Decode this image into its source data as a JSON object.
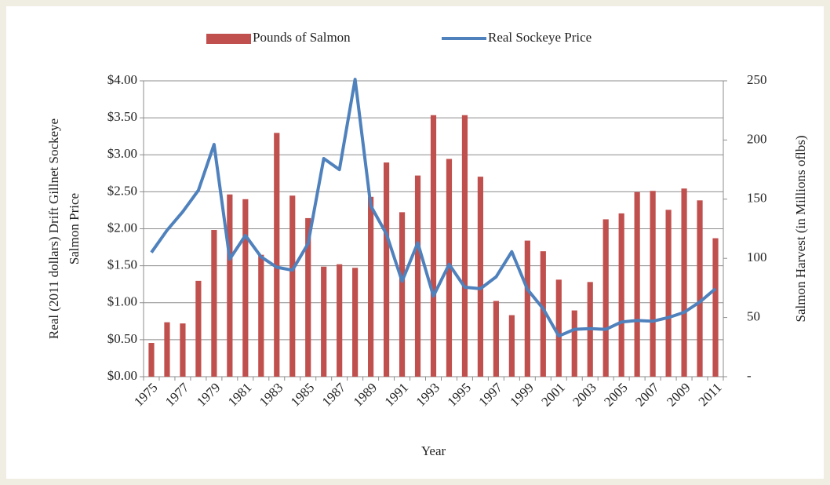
{
  "chart_data": {
    "type": "bar_line",
    "xlabel": "Year",
    "ylabel": [
      "Real (2011 dollars) Drift Gillnet Sockeye",
      "Salmon Price"
    ],
    "y2label": "Salmon Harvest (in Millions oflbs)",
    "categories": [
      "1975",
      null,
      "1977",
      null,
      "1979",
      null,
      "1981",
      null,
      "1983",
      null,
      "1985",
      null,
      "1987",
      null,
      "1989",
      null,
      "1991",
      null,
      "1993",
      null,
      "1995",
      null,
      "1997",
      null,
      "1999",
      null,
      "2001",
      null,
      "2003",
      null,
      "2005",
      null,
      "2007",
      null,
      "2009",
      null,
      "2011"
    ],
    "series": [
      {
        "name": "Pounds of Salmon",
        "type": "bar",
        "axis": "y2",
        "color": "#c0504d",
        "values": [
          28.5,
          46,
          45,
          81,
          124,
          154,
          150,
          103,
          206,
          153,
          134,
          93,
          95,
          92,
          152,
          181,
          139,
          170,
          221,
          184,
          221,
          169,
          64,
          52,
          115,
          106,
          82,
          56,
          80,
          133,
          138,
          156,
          157,
          141,
          159,
          149,
          117
        ]
      },
      {
        "name": "Real Sockeye Price",
        "type": "line",
        "axis": "y",
        "color": "#4f81bd",
        "values": [
          1.68,
          1.98,
          2.23,
          2.52,
          3.14,
          1.59,
          1.91,
          1.62,
          1.48,
          1.44,
          1.8,
          2.95,
          2.8,
          4.02,
          2.31,
          1.93,
          1.29,
          1.81,
          1.09,
          1.52,
          1.21,
          1.19,
          1.35,
          1.69,
          1.18,
          0.92,
          0.55,
          0.64,
          0.65,
          0.64,
          0.74,
          0.76,
          0.75,
          0.8,
          0.87,
          1.01,
          1.19
        ]
      }
    ],
    "ylim": [
      0,
      4
    ],
    "yticks": [
      {
        "value": 0,
        "label": "$0.00"
      },
      {
        "value": 0.5,
        "label": "$0.50"
      },
      {
        "value": 1,
        "label": "$1.00"
      },
      {
        "value": 1.5,
        "label": "$1.50"
      },
      {
        "value": 2,
        "label": "$2.00"
      },
      {
        "value": 2.5,
        "label": "$2.50"
      },
      {
        "value": 3,
        "label": "$3.00"
      },
      {
        "value": 3.5,
        "label": "$3.50"
      },
      {
        "value": 4,
        "label": "$4.00"
      }
    ],
    "y2lim": [
      0,
      250
    ],
    "y2ticks": [
      {
        "value": 0,
        "label": "-"
      },
      50,
      100,
      150,
      200,
      250
    ],
    "grid": true,
    "legend": "top"
  }
}
